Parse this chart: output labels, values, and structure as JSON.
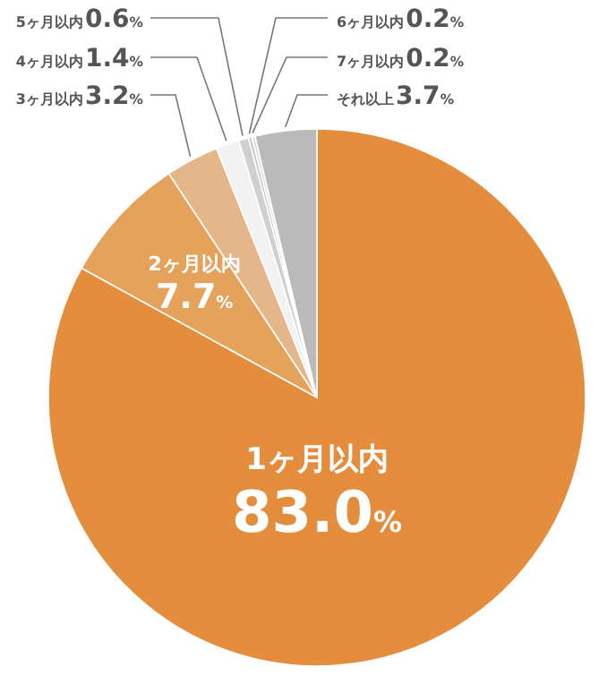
{
  "chart_data": {
    "type": "pie",
    "categories": [
      "1ヶ月以内",
      "2ヶ月以内",
      "3ヶ月以内",
      "4ヶ月以内",
      "5ヶ月以内",
      "6ヶ月以内",
      "7ヶ月以内",
      "それ以上"
    ],
    "values": [
      83.0,
      7.7,
      3.2,
      1.4,
      0.6,
      0.2,
      0.2,
      3.7
    ],
    "value_labels": [
      "83.0%",
      "7.7%",
      "3.2%",
      "1.4%",
      "0.6%",
      "0.2%",
      "0.2%",
      "3.7%"
    ],
    "colors": [
      "#e38d3d",
      "#e4a25a",
      "#e5b68a",
      "#f2f2f2",
      "#d0d0d0",
      "#c4c4c4",
      "#e0e0e0",
      "#bababa"
    ]
  }
}
